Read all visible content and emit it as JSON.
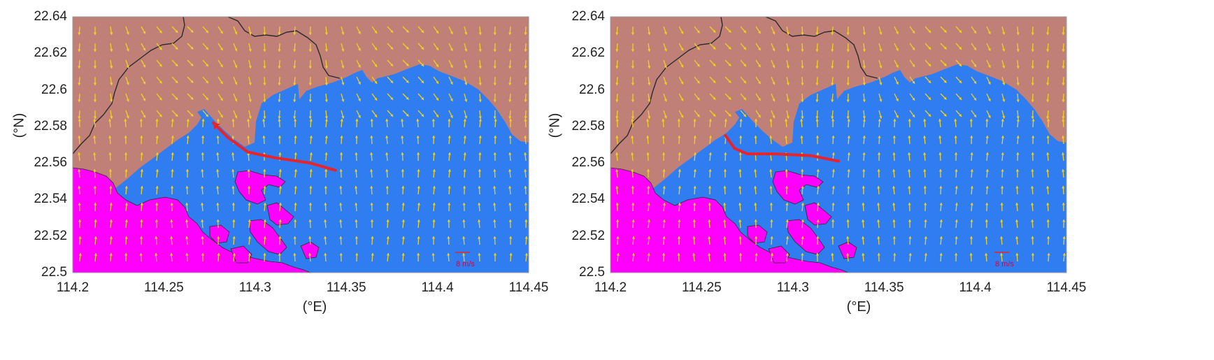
{
  "colors": {
    "land_north": "#c08078",
    "water": "#2f7df0",
    "land_south": "#ff00ff",
    "wind_arrow": "#f0d020",
    "track": "#e8242a",
    "boundary": "#2a2a2a"
  },
  "axes": {
    "x_ticks": [
      "114.2",
      "114.25",
      "114.3",
      "114.35",
      "114.4",
      "114.45"
    ],
    "y_ticks": [
      "22.64",
      "22.62",
      "22.6",
      "22.58",
      "22.56",
      "22.54",
      "22.52",
      "22.5"
    ],
    "xlabel": "(°E)",
    "ylabel": "(°N)",
    "xlim": [
      114.2,
      114.45
    ],
    "ylim": [
      22.5,
      22.64
    ]
  },
  "panels": [
    {
      "scale_label": "8 m/s",
      "track": [
        [
          114.344,
          22.556
        ],
        [
          114.33,
          22.56
        ],
        [
          114.31,
          22.563
        ],
        [
          114.296,
          22.566
        ],
        [
          114.285,
          22.574
        ],
        [
          114.277,
          22.582
        ]
      ],
      "track_head": true
    },
    {
      "scale_label": "8 m/s",
      "track": [
        [
          114.263,
          22.575
        ],
        [
          114.268,
          22.568
        ],
        [
          114.275,
          22.565
        ],
        [
          114.29,
          22.565
        ],
        [
          114.31,
          22.564
        ],
        [
          114.325,
          22.561
        ]
      ],
      "track_head": false
    }
  ]
}
